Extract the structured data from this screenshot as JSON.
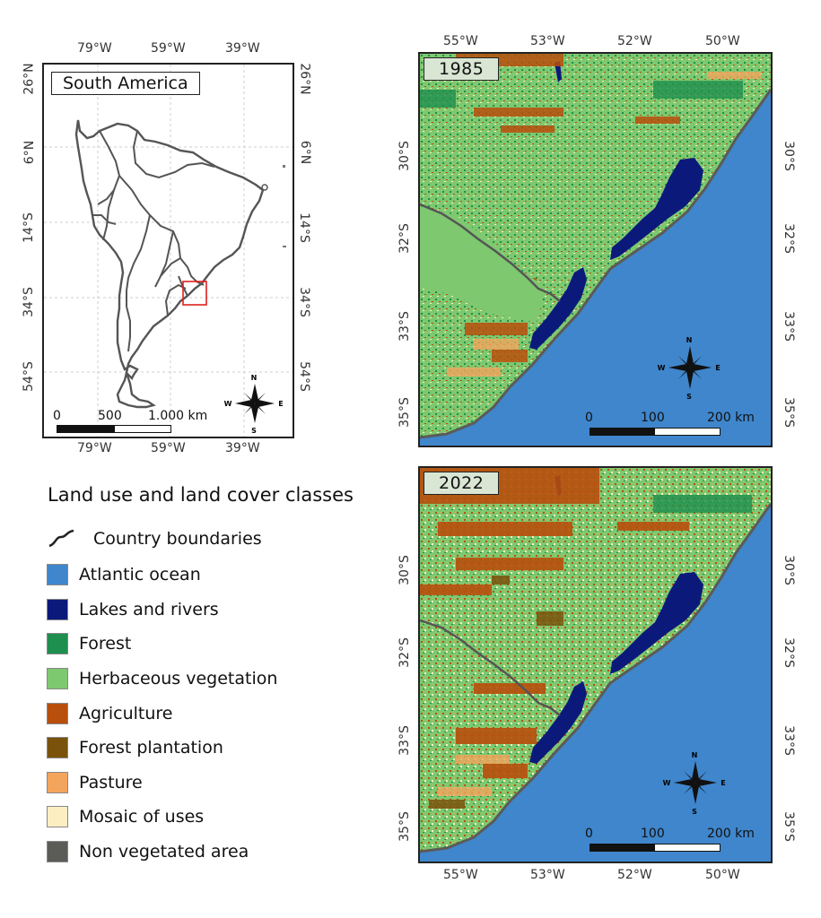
{
  "overview": {
    "label": "South America",
    "top_ticks": [
      "79°W",
      "59°W",
      "39°W"
    ],
    "bottom_ticks": [
      "79°W",
      "59°W",
      "39°W"
    ],
    "lat_ticks": [
      "26°N",
      "6°N",
      "14°S",
      "34°S",
      "54°S"
    ],
    "scale": {
      "t0": "0",
      "t1": "500",
      "t2": "1.000 km"
    },
    "compass": {
      "n": "N",
      "s": "S",
      "e": "E",
      "w": "W"
    }
  },
  "map_1985": {
    "year": "1985",
    "top_ticks": [
      "55°W",
      "53°W",
      "52°W",
      "50°W"
    ],
    "lat_ticks": [
      "30°S",
      "32°S",
      "33°S",
      "35°S"
    ],
    "scale": {
      "t0": "0",
      "t1": "100",
      "t2": "200 km"
    },
    "compass": {
      "n": "N",
      "s": "S",
      "e": "E",
      "w": "W"
    }
  },
  "map_2022": {
    "year": "2022",
    "bottom_ticks": [
      "55°W",
      "53°W",
      "52°W",
      "50°W"
    ],
    "lat_ticks": [
      "30°S",
      "32°S",
      "33°S",
      "35°S"
    ],
    "scale": {
      "t0": "0",
      "t1": "100",
      "t2": "200 km"
    },
    "compass": {
      "n": "N",
      "s": "S",
      "e": "E",
      "w": "W"
    }
  },
  "legend": {
    "title": "Land use and land cover classes",
    "items": [
      {
        "label": "Country boundaries",
        "color": "#222222",
        "kind": "line"
      },
      {
        "label": "Atlantic ocean",
        "color": "#3f86cc"
      },
      {
        "label": "Lakes and rivers",
        "color": "#0b1a7a"
      },
      {
        "label": "Forest",
        "color": "#1e8f4e"
      },
      {
        "label": "Herbaceous vegetation",
        "color": "#7ec86f"
      },
      {
        "label": "Agriculture",
        "color": "#b84f0c"
      },
      {
        "label": "Forest plantation",
        "color": "#7a520b"
      },
      {
        "label": "Pasture",
        "color": "#f3a55d"
      },
      {
        "label": "Mosaic of uses",
        "color": "#fdeec2"
      },
      {
        "label": "Non vegetated area",
        "color": "#5b5b58"
      }
    ]
  }
}
